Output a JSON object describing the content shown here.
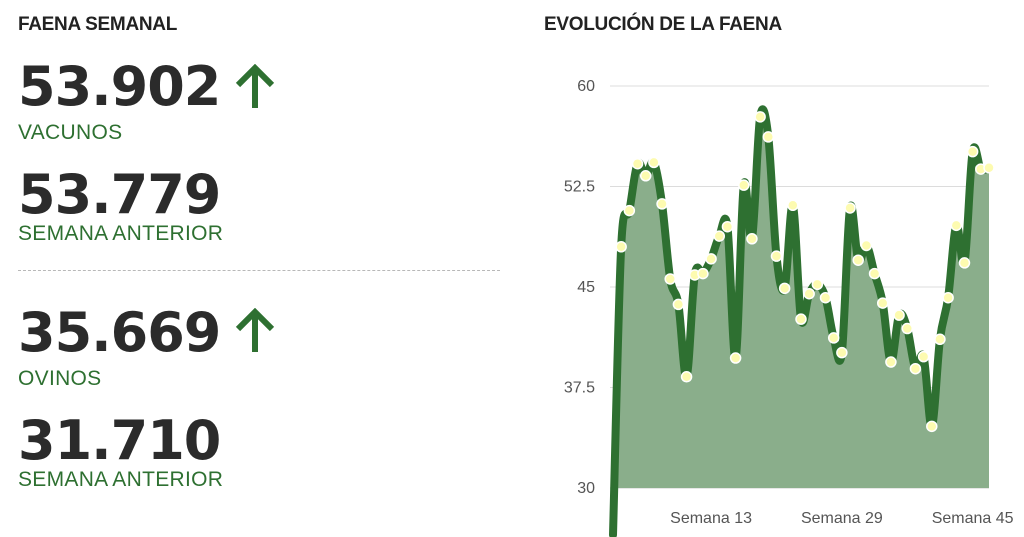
{
  "left_panel": {
    "title": "FAENA SEMANAL",
    "vacunos": {
      "value": "53.902",
      "label": "VACUNOS",
      "trend": "up-arrow-icon"
    },
    "vacunos_prev": {
      "value": "53.779",
      "label": "SEMANA ANTERIOR"
    },
    "ovinos": {
      "value": "35.669",
      "label": "OVINOS",
      "trend": "up-arrow-icon"
    },
    "ovinos_prev": {
      "value": "31.710",
      "label": "SEMANA ANTERIOR"
    }
  },
  "colors": {
    "accent": "#2e7031",
    "area": "#8aae8b",
    "marker": "#fdfbb0"
  },
  "chart_data": {
    "type": "area",
    "title": "EVOLUCIÓN DE LA FAENA",
    "xlabel": "",
    "ylabel": "",
    "ylim": [
      30,
      60
    ],
    "yticks": [
      "60",
      "52.5",
      "45",
      "37.5",
      "30"
    ],
    "ytick_values": [
      60,
      52.5,
      45,
      37.5,
      30
    ],
    "xticks": [
      {
        "label": "Semana 13",
        "week": 13
      },
      {
        "label": "Semana 29",
        "week": 29
      },
      {
        "label": "Semana 45",
        "week": 45
      }
    ],
    "grid": true,
    "series": [
      {
        "values": [
          26.5,
          48.0,
          50.7,
          54.2,
          53.3,
          54.3,
          51.2,
          45.6,
          43.7,
          38.3,
          45.9,
          46.0,
          47.1,
          48.8,
          49.5,
          39.7,
          52.6,
          48.6,
          57.7,
          56.2,
          47.3,
          44.9,
          51.1,
          42.6,
          44.5,
          45.2,
          44.2,
          41.2,
          40.1,
          50.9,
          47.0,
          48.1,
          46.0,
          43.8,
          39.4,
          42.9,
          41.9,
          38.9,
          39.8,
          34.6,
          41.1,
          44.2,
          49.6,
          46.8,
          55.1,
          53.8,
          53.9
        ]
      }
    ]
  }
}
